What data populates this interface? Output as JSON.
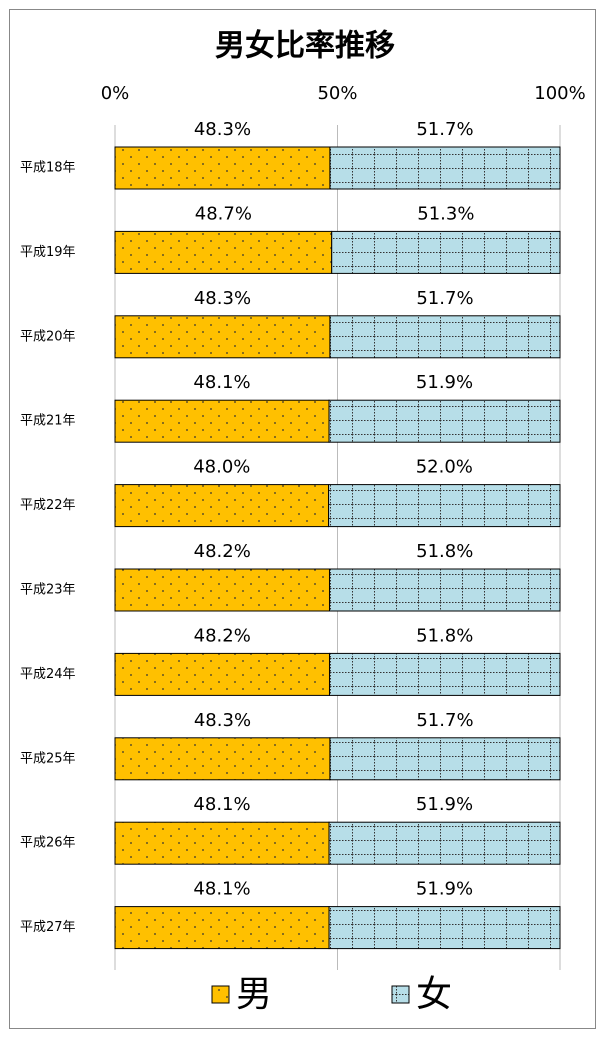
{
  "chart_data": {
    "type": "bar",
    "orientation": "horizontal",
    "stacked": true,
    "title": "男女比率推移",
    "categories": [
      "平成18年",
      "平成19年",
      "平成20年",
      "平成21年",
      "平成22年",
      "平成23年",
      "平成24年",
      "平成25年",
      "平成26年",
      "平成27年"
    ],
    "series": [
      {
        "name": "男",
        "color": "#ffc000",
        "values": [
          48.3,
          48.7,
          48.3,
          48.1,
          48.0,
          48.2,
          48.2,
          48.3,
          48.1,
          48.1
        ],
        "value_labels": [
          "48.3%",
          "48.7%",
          "48.3%",
          "48.1%",
          "48.0%",
          "48.2%",
          "48.2%",
          "48.3%",
          "48.1%",
          "48.1%"
        ]
      },
      {
        "name": "女",
        "color": "#b7dee8",
        "values": [
          51.7,
          51.3,
          51.7,
          51.9,
          52.0,
          51.8,
          51.8,
          51.7,
          51.9,
          51.9
        ],
        "value_labels": [
          "51.7%",
          "51.3%",
          "51.7%",
          "51.9%",
          "52.0%",
          "51.8%",
          "51.8%",
          "51.7%",
          "51.9%",
          "51.9%"
        ]
      }
    ],
    "xlim": [
      0,
      100
    ],
    "xticks": [
      {
        "value": 0,
        "label": "0%"
      },
      {
        "value": 50,
        "label": "50%"
      },
      {
        "value": 100,
        "label": "100%"
      }
    ],
    "grid": true,
    "legend": "bottom"
  }
}
